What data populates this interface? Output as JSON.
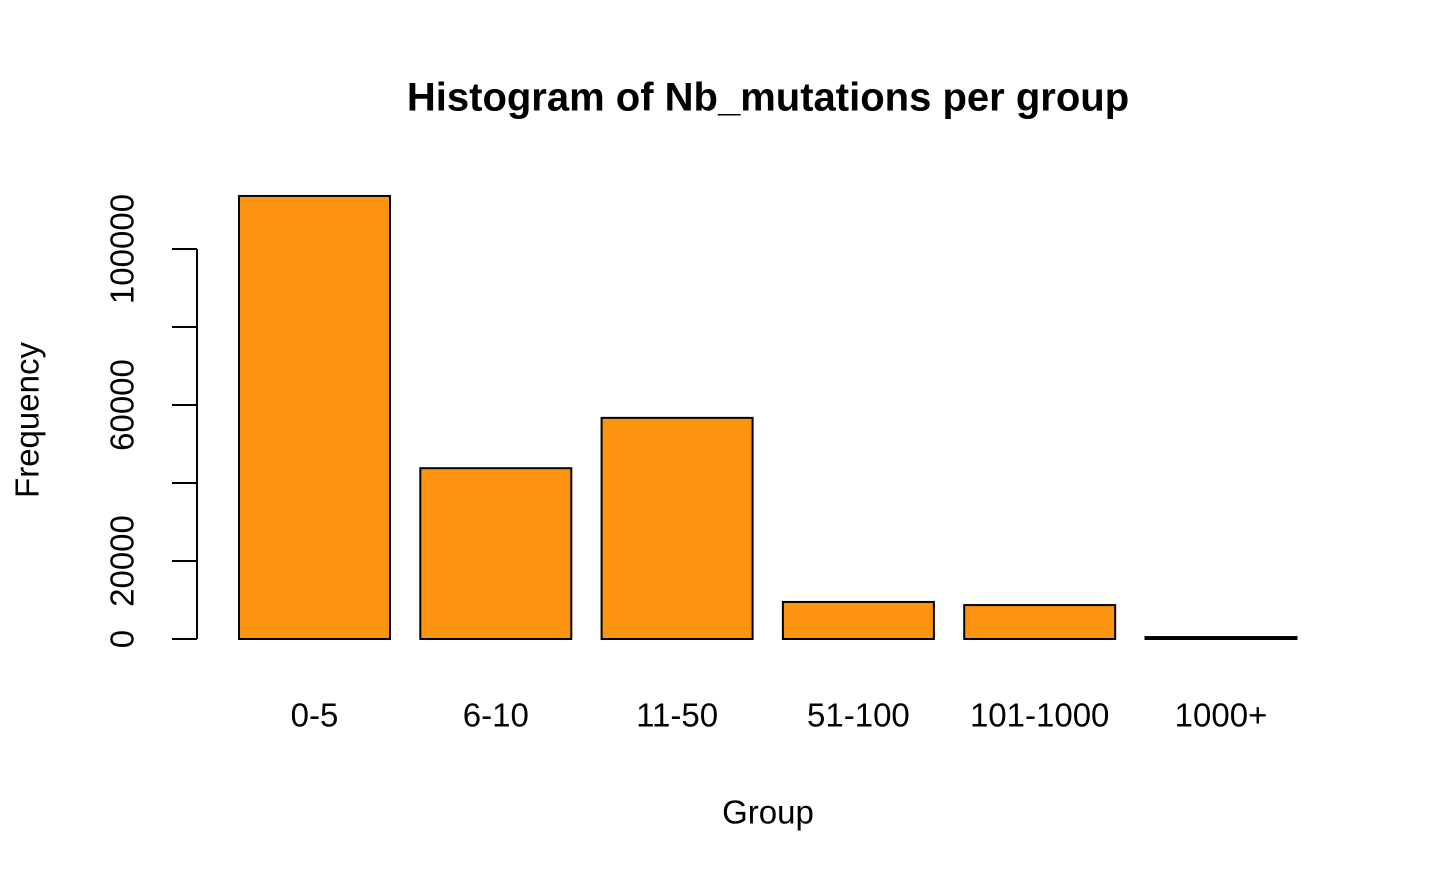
{
  "chart_data": {
    "type": "bar",
    "title": "Histogram of Nb_mutations per group",
    "x_label": "Group",
    "y_label": "Frequency",
    "categories": [
      "0-5",
      "6-10",
      "11-50",
      "51-100",
      "101-1000",
      "1000+"
    ],
    "values": [
      113600,
      43800,
      56700,
      9500,
      8700,
      500
    ],
    "color": "#fd940f",
    "ylim": [
      0,
      120000
    ],
    "yticks": [
      0,
      20000,
      40000,
      60000,
      80000,
      100000
    ]
  }
}
